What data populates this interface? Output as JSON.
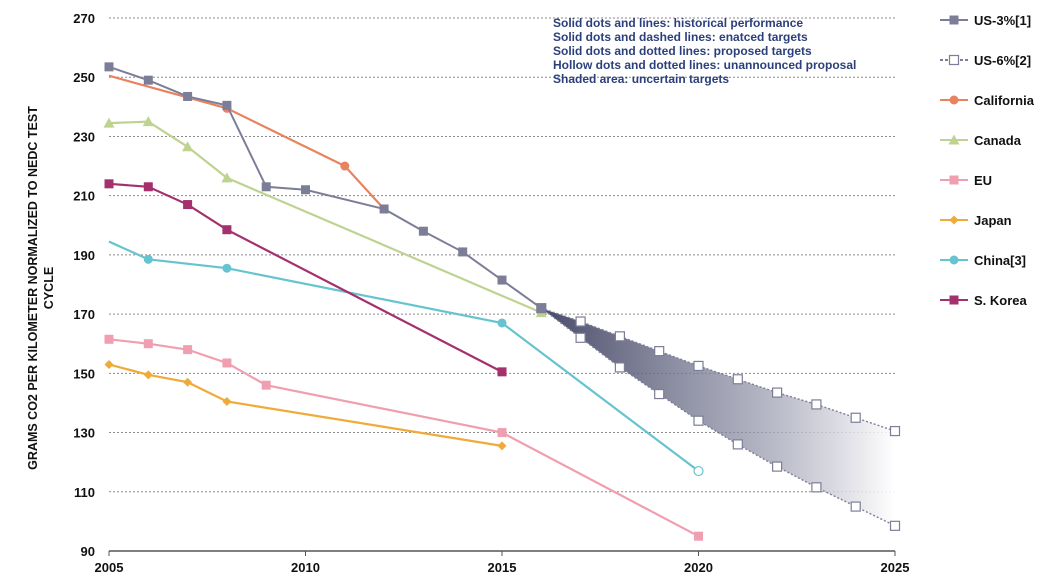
{
  "chart_data": {
    "type": "line",
    "ylabel_lines": [
      "GRAMS CO2 PER KILOMETER NORMALIZED TO NEDC TEST",
      "CYCLE"
    ],
    "xlim": [
      2005,
      2025
    ],
    "ylim": [
      90,
      270
    ],
    "x_ticks": [
      2005,
      2010,
      2015,
      2020,
      2025
    ],
    "y_ticks": [
      90,
      110,
      130,
      150,
      170,
      190,
      210,
      230,
      250,
      270
    ],
    "grid": "horizontal-dotted",
    "legend_position": "right",
    "annotations": [
      "Solid dots and lines: historical performance",
      "Solid dots and dashed lines: enatced targets",
      "Solid dots and dotted lines: proposed targets",
      "Hollow dots and dotted lines: unannounced proposal",
      "Shaded area: uncertain targets"
    ],
    "series": [
      {
        "name": "US-3%[1]",
        "color": "#7c7e98",
        "marker": "square",
        "x": [
          2005,
          2006,
          2007,
          2008,
          2009,
          2010,
          2012,
          2013,
          2014,
          2015,
          2016,
          2017,
          2018,
          2019,
          2020,
          2021,
          2022,
          2023,
          2024,
          2025
        ],
        "y": [
          253.5,
          249,
          243.5,
          240.5,
          213,
          212,
          205.5,
          198,
          191,
          181.5,
          172,
          167.5,
          162.5,
          157.5,
          152.5,
          148,
          143.5,
          139.5,
          135,
          130.5
        ]
      },
      {
        "name": "US-6%[2]",
        "color": "#7c7e98",
        "marker": "square-hollow",
        "x": [
          2016,
          2017,
          2018,
          2019,
          2020,
          2021,
          2022,
          2023,
          2024,
          2025
        ],
        "y": [
          172,
          162,
          152,
          143,
          134,
          126,
          118.5,
          111.5,
          105,
          98.5
        ]
      },
      {
        "name": "California",
        "color": "#e8825f",
        "marker": "circle",
        "x": [
          2005,
          2008,
          2011,
          2012
        ],
        "y": [
          250.5,
          239.5,
          220,
          205.5
        ]
      },
      {
        "name": "Canada",
        "color": "#bed38f",
        "marker": "triangle",
        "x": [
          2005,
          2006,
          2007,
          2008,
          2016
        ],
        "y": [
          234.5,
          235,
          226.5,
          216,
          170.5
        ]
      },
      {
        "name": "EU",
        "color": "#ef9fb0",
        "marker": "square",
        "x": [
          2005,
          2006,
          2007,
          2008,
          2009,
          2015,
          2020
        ],
        "y": [
          161.5,
          160,
          158,
          153.5,
          146,
          130,
          95
        ]
      },
      {
        "name": "Japan",
        "color": "#f0aa3a",
        "marker": "diamond",
        "x": [
          2005,
          2006,
          2007,
          2008,
          2015
        ],
        "y": [
          153,
          149.5,
          147,
          140.5,
          125.5
        ]
      },
      {
        "name": "China[3]",
        "color": "#66c3d0",
        "marker": "circle",
        "x": [
          2005,
          2006,
          2008,
          2015,
          2020
        ],
        "y": [
          194.5,
          188.5,
          185.5,
          167,
          117
        ]
      },
      {
        "name": "S. Korea",
        "color": "#a5306e",
        "marker": "square",
        "x": [
          2005,
          2006,
          2007,
          2008,
          2015
        ],
        "y": [
          214,
          213,
          207,
          198.5,
          150.5
        ]
      }
    ]
  }
}
